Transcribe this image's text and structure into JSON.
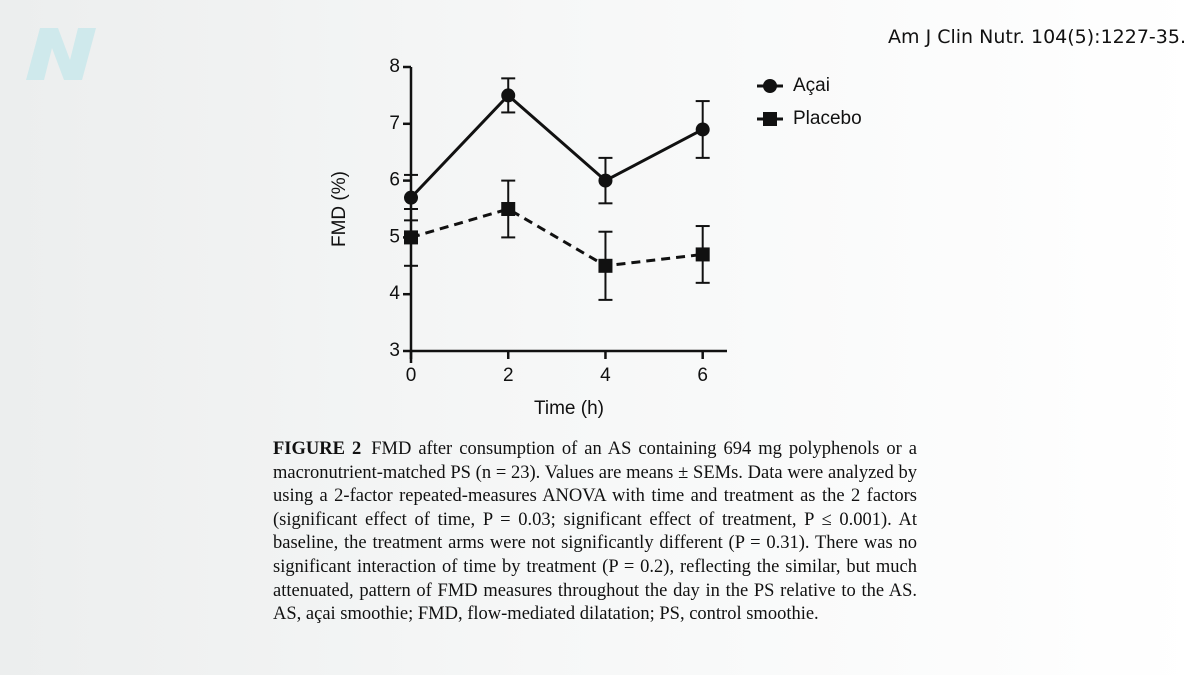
{
  "citation": "Am J Clin Nutr. 104(5):1227-35.",
  "caption_label": "FIGURE 2",
  "caption": "FMD after consumption of an AS containing 694 mg polyphenols or a macronutrient-matched PS (n = 23). Values are means ± SEMs. Data were analyzed by using a 2-factor repeated-measures ANOVA with time and treatment as the 2 factors (significant effect of time, P = 0.03; significant effect of treatment, P ≤ 0.001). At baseline, the treatment arms were not significantly different (P = 0.31). There was no significant interaction of time by treatment (P = 0.2), reflecting the similar, but much attenuated, pattern of FMD measures throughout the day in the PS relative to the AS. AS, açai smoothie; FMD, flow-mediated dilatation; PS, control smoothie.",
  "chart_data": {
    "type": "line",
    "x_label": "Time (h)",
    "y_label": "FMD (%)",
    "x": [
      0,
      2,
      4,
      6
    ],
    "xlim": [
      0,
      6.5
    ],
    "xticks": [
      0,
      2,
      4,
      6
    ],
    "ylim": [
      3,
      8
    ],
    "yticks": [
      3,
      4,
      5,
      6,
      7,
      8
    ],
    "legend": "right",
    "series": [
      {
        "name": "Açai",
        "color": "#111111",
        "marker": "circle",
        "line_style": "solid",
        "values": [
          5.7,
          7.5,
          6.0,
          6.9
        ],
        "errors": [
          0.4,
          0.3,
          0.4,
          0.5
        ]
      },
      {
        "name": "Placebo",
        "color": "#111111",
        "marker": "square",
        "line_style": "dashed",
        "values": [
          5.0,
          5.5,
          4.5,
          4.7
        ],
        "errors": [
          0.5,
          0.5,
          0.6,
          0.5
        ]
      }
    ]
  }
}
